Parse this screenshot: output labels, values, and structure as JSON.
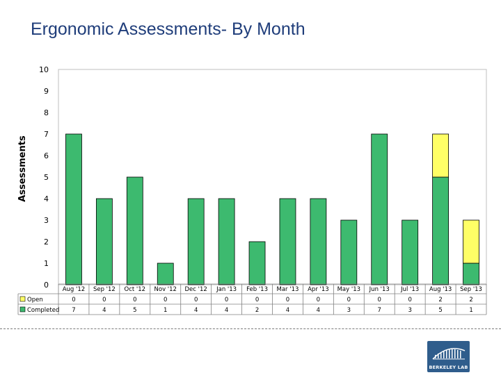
{
  "page": {
    "title": "Ergonomic Assessments- By Month",
    "logo_text": "BERKELEY LAB"
  },
  "chart_data": {
    "type": "bar",
    "stacked": true,
    "title": "Ergonomic Assessments- By Month",
    "xlabel": "",
    "ylabel": "Assessments",
    "ylim": [
      0,
      10
    ],
    "yticks": [
      0,
      1,
      2,
      3,
      4,
      5,
      6,
      7,
      8,
      9,
      10
    ],
    "grid": false,
    "legend": "data-table",
    "categories": [
      "Aug '12",
      "Sep '12",
      "Oct '12",
      "Nov '12",
      "Dec '12",
      "Jan '13",
      "Feb '13",
      "Mar '13",
      "Apr '13",
      "May '13",
      "Jun '13",
      "Jul '13",
      "Aug '13",
      "Sep '13"
    ],
    "series": [
      {
        "name": "Open",
        "color": "#ffff66",
        "values": [
          0,
          0,
          0,
          0,
          0,
          0,
          0,
          0,
          0,
          0,
          0,
          0,
          2,
          2
        ]
      },
      {
        "name": "Completed",
        "color": "#3dba6f",
        "values": [
          7,
          4,
          5,
          1,
          4,
          4,
          2,
          4,
          4,
          3,
          7,
          3,
          5,
          1
        ]
      }
    ]
  }
}
